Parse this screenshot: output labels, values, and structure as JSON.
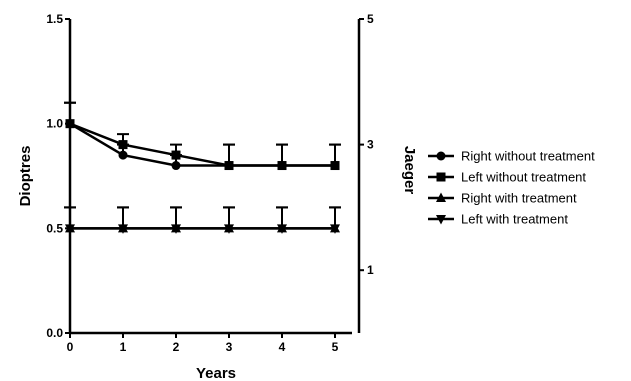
{
  "chart_data": {
    "type": "line",
    "title": "",
    "xlabel": "Years",
    "ylabel": "Dioptres",
    "y2label": "Jaeger",
    "x": [
      0,
      1,
      2,
      3,
      4,
      5
    ],
    "xlim": [
      0,
      5.5
    ],
    "ylim": [
      0,
      1.5
    ],
    "y2lim": [
      0,
      5
    ],
    "xticks": [
      "0",
      "1",
      "2",
      "3",
      "4",
      "5"
    ],
    "yticks": [
      "0.0",
      "0.5",
      "1.0",
      "1.5"
    ],
    "y2ticks": [
      "1",
      "3",
      "5"
    ],
    "grid": false,
    "legend_position": "right",
    "colors": {
      "line": "#000000"
    },
    "series": [
      {
        "name": "Right without treatment",
        "marker": "circle",
        "values": [
          1.0,
          0.85,
          0.8,
          0.8,
          0.8,
          0.8
        ],
        "error_upper": [
          0.1,
          0.05,
          0.05,
          0.1,
          0.1,
          0.1
        ]
      },
      {
        "name": "Left without treatment",
        "marker": "square",
        "values": [
          1.0,
          0.9,
          0.85,
          0.8,
          0.8,
          0.8
        ],
        "error_upper": [
          0.1,
          0.05,
          0.05,
          0.1,
          0.1,
          0.1
        ]
      },
      {
        "name": "Right with treatment",
        "marker": "triangle-up",
        "values": [
          0.5,
          0.5,
          0.5,
          0.5,
          0.5,
          0.5
        ],
        "error_upper": [
          0.1,
          0.1,
          0.1,
          0.1,
          0.1,
          0.1
        ]
      },
      {
        "name": "Left with treatment",
        "marker": "triangle-down",
        "values": [
          0.5,
          0.5,
          0.5,
          0.5,
          0.5,
          0.5
        ],
        "error_upper": [
          0.1,
          0.1,
          0.1,
          0.1,
          0.1,
          0.1
        ]
      }
    ]
  }
}
